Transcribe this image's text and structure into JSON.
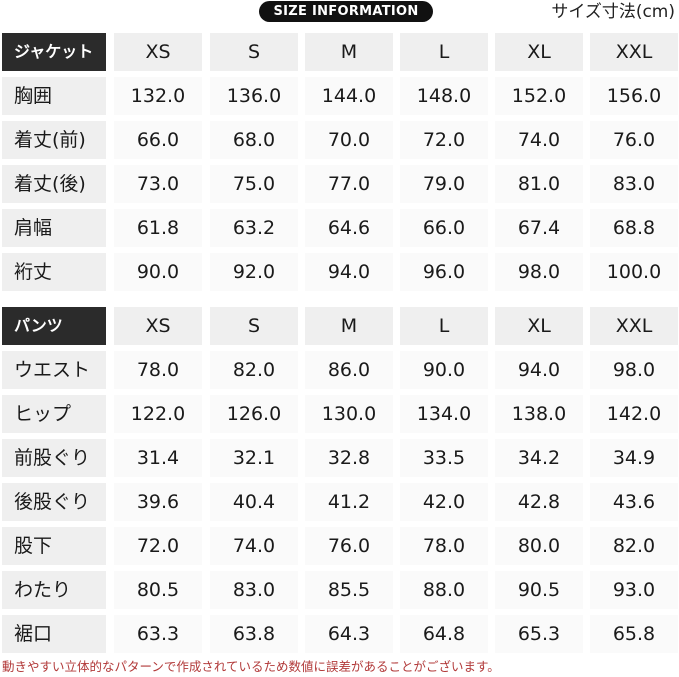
{
  "banner": "SIZE INFORMATION",
  "unit_label": "サイズ寸法(cm)",
  "sizes": [
    "XS",
    "S",
    "M",
    "L",
    "XL",
    "XXL"
  ],
  "jacket": {
    "header": "ジャケット",
    "rows": [
      {
        "label": "胸囲",
        "values": [
          "132.0",
          "136.0",
          "144.0",
          "148.0",
          "152.0",
          "156.0"
        ]
      },
      {
        "label": "着丈(前)",
        "values": [
          "66.0",
          "68.0",
          "70.0",
          "72.0",
          "74.0",
          "76.0"
        ]
      },
      {
        "label": "着丈(後)",
        "values": [
          "73.0",
          "75.0",
          "77.0",
          "79.0",
          "81.0",
          "83.0"
        ]
      },
      {
        "label": "肩幅",
        "values": [
          "61.8",
          "63.2",
          "64.6",
          "66.0",
          "67.4",
          "68.8"
        ]
      },
      {
        "label": "裄丈",
        "values": [
          "90.0",
          "92.0",
          "94.0",
          "96.0",
          "98.0",
          "100.0"
        ]
      }
    ]
  },
  "pants": {
    "header": "パンツ",
    "rows": [
      {
        "label": "ウエスト",
        "values": [
          "78.0",
          "82.0",
          "86.0",
          "90.0",
          "94.0",
          "98.0"
        ]
      },
      {
        "label": "ヒップ",
        "values": [
          "122.0",
          "126.0",
          "130.0",
          "134.0",
          "138.0",
          "142.0"
        ]
      },
      {
        "label": "前股ぐり",
        "values": [
          "31.4",
          "32.1",
          "32.8",
          "33.5",
          "34.2",
          "34.9"
        ]
      },
      {
        "label": "後股ぐり",
        "values": [
          "39.6",
          "40.4",
          "41.2",
          "42.0",
          "42.8",
          "43.6"
        ]
      },
      {
        "label": "股下",
        "values": [
          "72.0",
          "74.0",
          "76.0",
          "78.0",
          "80.0",
          "82.0"
        ]
      },
      {
        "label": "わたり",
        "values": [
          "80.5",
          "83.0",
          "85.5",
          "88.0",
          "90.5",
          "93.0"
        ]
      },
      {
        "label": "裾口",
        "values": [
          "63.3",
          "63.8",
          "64.3",
          "64.8",
          "65.3",
          "65.8"
        ]
      }
    ]
  },
  "note": "動きやすい立体的なパターンで作成されているため数値に誤差があることがございます。",
  "colors": {
    "note": "#b23a3a",
    "header_bg": "#2b2b2b",
    "label_bg": "#efefef"
  }
}
